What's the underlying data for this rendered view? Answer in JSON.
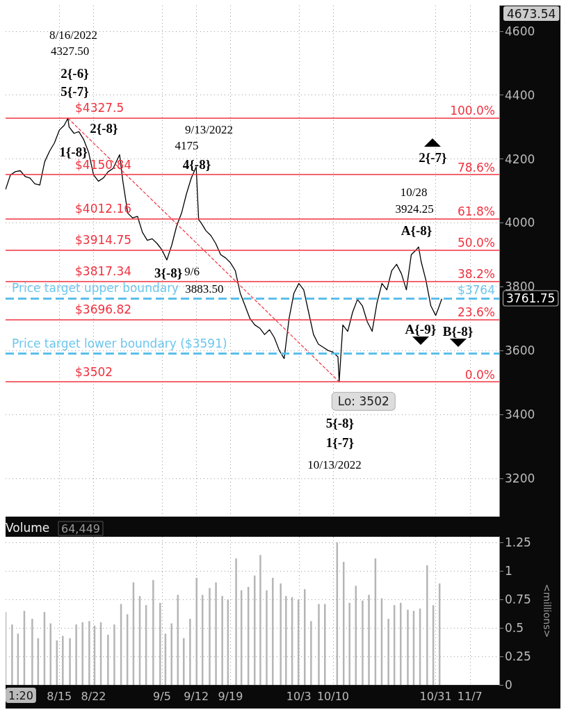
{
  "chart_data": [
    {
      "type": "line",
      "tick_labels": "y",
      "grid": true,
      "marker": "none",
      "xlim": [
        "2022-08-04",
        "2022-11-13"
      ],
      "xticks": [
        {
          "value": "2022-08-15",
          "label": null
        },
        {
          "value": "2022-08-22",
          "label": null
        },
        {
          "value": "2022-09-05",
          "label": null
        },
        {
          "value": "2022-09-12",
          "label": null
        },
        {
          "value": "2022-09-19",
          "label": null
        },
        {
          "value": "2022-10-03",
          "label": null
        },
        {
          "value": "2022-10-10",
          "label": null
        },
        {
          "value": "2022-10-31",
          "label": null
        },
        {
          "value": "2022-11-07",
          "label": null
        }
      ],
      "ylim": [
        3080,
        4680
      ],
      "yticks": [
        3200,
        3400,
        3600,
        3800,
        4000,
        4200,
        4400,
        4600
      ],
      "series": [
        {
          "color": "#000000",
          "line_style": "solid",
          "x": [
            "2022-08-04",
            "2022-08-05",
            "2022-08-06",
            "2022-08-07",
            "2022-08-08",
            "2022-08-09",
            "2022-08-10",
            "2022-08-11",
            "2022-08-12",
            "2022-08-13",
            "2022-08-14",
            "2022-08-15",
            "2022-08-16",
            "2022-08-16T18:00",
            "2022-08-17",
            "2022-08-18",
            "2022-08-19",
            "2022-08-20",
            "2022-08-21",
            "2022-08-22",
            "2022-08-23",
            "2022-08-24",
            "2022-08-25",
            "2022-08-26",
            "2022-08-27T08:00",
            "2022-08-28",
            "2022-08-29",
            "2022-08-30",
            "2022-08-31",
            "2022-09-01",
            "2022-09-02",
            "2022-09-03",
            "2022-09-04",
            "2022-09-05",
            "2022-09-06",
            "2022-09-07",
            "2022-09-08",
            "2022-09-09",
            "2022-09-10",
            "2022-09-11",
            "2022-09-12",
            "2022-09-12T12:00",
            "2022-09-13",
            "2022-09-14",
            "2022-09-15",
            "2022-09-16",
            "2022-09-17",
            "2022-09-18",
            "2022-09-19",
            "2022-09-20",
            "2022-09-21",
            "2022-09-22",
            "2022-09-23",
            "2022-09-24",
            "2022-09-25",
            "2022-09-26",
            "2022-09-27",
            "2022-09-28",
            "2022-09-29",
            "2022-09-30",
            "2022-10-01",
            "2022-10-02",
            "2022-10-03",
            "2022-10-04",
            "2022-10-05",
            "2022-10-06",
            "2022-10-07",
            "2022-10-08",
            "2022-10-09",
            "2022-10-10",
            "2022-10-11",
            "2022-10-11T06:00",
            "2022-10-12",
            "2022-10-13",
            "2022-10-14",
            "2022-10-15",
            "2022-10-16",
            "2022-10-17",
            "2022-10-18",
            "2022-10-19",
            "2022-10-20",
            "2022-10-21",
            "2022-10-22",
            "2022-10-23",
            "2022-10-24",
            "2022-10-25",
            "2022-10-26",
            "2022-10-27",
            "2022-10-27T12:00",
            "2022-10-28",
            "2022-10-29",
            "2022-10-30",
            "2022-10-31",
            "2022-10-31T12:00",
            "2022-11-01T06:00"
          ],
          "values": [
            4104,
            4150,
            4160,
            4163,
            4145,
            4140,
            4122,
            4118,
            4191,
            4224,
            4250,
            4290,
            4305,
            4327.5,
            4300,
            4280,
            4285,
            4260,
            4220,
            4150,
            4130,
            4140,
            4160,
            4170,
            4213,
            4130,
            4030,
            4015,
            4020,
            3970,
            3945,
            3950,
            3935,
            3915,
            3883.5,
            3930,
            3990,
            4030,
            4090,
            4140,
            4175,
            4010,
            4000,
            3975,
            3960,
            3935,
            3900,
            3890,
            3875,
            3850,
            3780,
            3740,
            3700,
            3680,
            3670,
            3650,
            3665,
            3640,
            3600,
            3575,
            3700,
            3780,
            3810,
            3790,
            3720,
            3650,
            3620,
            3610,
            3600,
            3595,
            3580,
            3502,
            3680,
            3660,
            3720,
            3760,
            3740,
            3690,
            3660,
            3750,
            3810,
            3790,
            3850,
            3870,
            3840,
            3790,
            3900,
            3915,
            3924.25,
            3880,
            3820,
            3740,
            3710,
            3730,
            3761.75
          ]
        },
        {
          "type": "line",
          "color": "#f0323f",
          "line_style": "dashed",
          "x": [
            "2022-08-16T18:00",
            "2022-10-11T06:00"
          ],
          "values": [
            4327.5,
            3502
          ]
        }
      ],
      "ref_lines": [
        {
          "axis": "y",
          "value": 4327.5,
          "label": "$4327.5",
          "color": "#f0323f"
        },
        {
          "axis": "y",
          "value": 4150.84,
          "label": "$4150.84",
          "color": "#f0323f"
        },
        {
          "axis": "y",
          "value": 4012.16,
          "label": "$4012.16",
          "color": "#f0323f"
        },
        {
          "axis": "y",
          "value": 3914.75,
          "label": "$3914.75",
          "color": "#f0323f"
        },
        {
          "axis": "y",
          "value": 3817.34,
          "label": "$3817.34",
          "color": "#f0323f"
        },
        {
          "axis": "y",
          "value": 3696.82,
          "label": "$3696.82",
          "color": "#f0323f"
        },
        {
          "axis": "y",
          "value": 3502,
          "label": "$3502",
          "color": "#f0323f"
        },
        {
          "axis": "y",
          "value": 3764,
          "label": "Price target upper boundary",
          "color": "#5bbfea",
          "line_style": "dashed"
        },
        {
          "axis": "y",
          "value": 3591,
          "label": "Price target lower boundary ($3591)",
          "color": "#5bbfea",
          "line_style": "dashed"
        }
      ],
      "annotations": [
        "4673.54",
        "3761.75",
        {
          "text": "Lo: 3502",
          "x": "2022-10-11T06:00",
          "y": 3502
        },
        {
          "text": "100.0%",
          "y": 4327.5
        },
        {
          "text": "78.6%",
          "y": 4150.84
        },
        {
          "text": "61.8%",
          "y": 4012.16
        },
        {
          "text": "50.0%",
          "y": 3914.75
        },
        {
          "text": "38.2%",
          "y": 3817.34
        },
        {
          "text": "23.6%",
          "y": 3696.82
        },
        {
          "text": "0.0%",
          "y": 3502
        },
        {
          "text": "$3764",
          "y": 3764
        },
        "8/16/2022",
        "4327.50",
        "2{-6}",
        "5{-7}",
        "2{-8}",
        "1{-8}",
        "9/13/2022",
        "4175",
        "4{-8}",
        "3{-8}",
        "9/6",
        "3883.50",
        "10/28",
        "3924.25",
        "A{-8}",
        "2{-7}",
        "A{-9}",
        "B{-8}",
        "5{-8}",
        "1{-7}",
        "10/13/2022"
      ]
    },
    {
      "type": "bar",
      "title": "Volume",
      "ylabel": "<millions>",
      "grid": true,
      "xlim": [
        "2022-08-04",
        "2022-11-13"
      ],
      "xticks": [
        {
          "value": "2022-08-15",
          "label": "8/15"
        },
        {
          "value": "2022-08-22",
          "label": "8/22"
        },
        {
          "value": "2022-09-05",
          "label": "9/5"
        },
        {
          "value": "2022-09-12",
          "label": "9/12"
        },
        {
          "value": "2022-09-19",
          "label": "9/19"
        },
        {
          "value": "2022-10-03",
          "label": "10/3"
        },
        {
          "value": "2022-10-10",
          "label": "10/10"
        },
        {
          "value": "2022-10-31",
          "label": "10/31"
        },
        {
          "value": "2022-11-07",
          "label": "11/7"
        }
      ],
      "ylim": [
        0,
        1.3
      ],
      "yticks": [
        0,
        0.25,
        0.5,
        0.75,
        1,
        1.25
      ],
      "series": [
        {
          "color": "#b5b5b5",
          "x": [
            "2022-08-04",
            "2022-08-05T08:00",
            "2022-08-06T13:00",
            "2022-08-07T20:00",
            "2022-08-09T11:00",
            "2022-08-10T16:00",
            "2022-08-11T23:00",
            "2022-08-13T05:00",
            "2022-08-14T12:00",
            "2022-08-15T17:00",
            "2022-08-17T04:00",
            "2022-08-18T11:00",
            "2022-08-19T18:00",
            "2022-08-21T03:00",
            "2022-08-22T05:00",
            "2022-08-23T12:00",
            "2022-08-24T23:00",
            "2022-08-26T06:00",
            "2022-08-27T15:00",
            "2022-08-28T22:00",
            "2022-08-30T04:00",
            "2022-08-31T11:00",
            "2022-09-01T18:00",
            "2022-09-03T05:00",
            "2022-09-04T15:00",
            "2022-09-05T17:00",
            "2022-09-06T23:00",
            "2022-09-08T06:00",
            "2022-09-09T11:00",
            "2022-09-10T18:00",
            "2022-09-12T02:00",
            "2022-09-13T07:00",
            "2022-09-14T18:00",
            "2022-09-16T01:00",
            "2022-09-17T08:00",
            "2022-09-18T12:00",
            "2022-09-20T04:00",
            "2022-09-21T06:00",
            "2022-09-22T16:00",
            "2022-09-23T23:00",
            "2022-09-25T03:00",
            "2022-09-26T10:00",
            "2022-09-27T16:00",
            "2022-09-29T07:00",
            "2022-09-30T09:00",
            "2022-10-01T15:00",
            "2022-10-02T22:00",
            "2022-10-04T05:00",
            "2022-10-05T12:00",
            "2022-10-07T02:00",
            "2022-10-08T08:00",
            "2022-10-10T20:00",
            "2022-10-12T04:00",
            "2022-10-13T09:00",
            "2022-10-14T16:00",
            "2022-10-16T01:00",
            "2022-10-17T08:00",
            "2022-10-18T16:00",
            "2022-10-19T23:00",
            "2022-10-21T08:00",
            "2022-10-22T13:00",
            "2022-10-23T20:00",
            "2022-10-25T07:00",
            "2022-10-26T12:00",
            "2022-10-27T19:00",
            "2022-10-29T06:00",
            "2022-10-30T12:00",
            "2022-10-31T19:00"
          ],
          "values": [
            0.64,
            0.53,
            0.45,
            0.65,
            0.58,
            0.41,
            0.64,
            0.54,
            0.39,
            0.43,
            0.41,
            0.53,
            0.55,
            0.56,
            0.52,
            0.55,
            0.44,
            0.53,
            0.71,
            0.62,
            0.9,
            0.78,
            0.7,
            0.92,
            0.72,
            0.45,
            0.54,
            0.79,
            0.41,
            0.58,
            0.94,
            0.79,
            0.85,
            0.9,
            0.78,
            0.75,
            1.11,
            0.83,
            0.86,
            0.96,
            1.14,
            0.83,
            0.94,
            0.89,
            0.78,
            0.77,
            0.75,
            0.84,
            0.56,
            0.71,
            0.71,
            1.25,
            1.08,
            0.72,
            0.87,
            0.74,
            0.79,
            1.11,
            0.76,
            0.58,
            0.7,
            0.72,
            0.66,
            0.65,
            0.67,
            1.05,
            0.7,
            0.89
          ]
        }
      ],
      "annotations": [
        "64,449",
        "1:20"
      ]
    }
  ]
}
